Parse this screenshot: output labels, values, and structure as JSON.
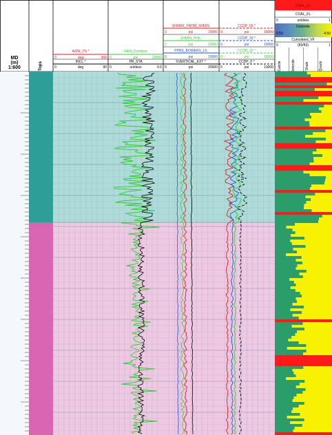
{
  "depth_track": {
    "title_line1": "MD",
    "title_line2": "(m)",
    "scale": "1:600"
  },
  "tops_track": {
    "title": "Tops",
    "zones": [
      {
        "color": "#2e9e98",
        "fill": "#aedcd9",
        "depth_from": 0,
        "depth_to": 0.415
      },
      {
        "color": "#d966b3",
        "fill": "#efc8e3",
        "depth_from": 0.415,
        "depth_to": 1.0
      }
    ]
  },
  "incl_track": {
    "curves": [
      {
        "name": "AZIM_TN *",
        "min": "0",
        "unit": "deg",
        "max": "360",
        "color": "#e8161b"
      },
      {
        "name": "INCL *",
        "min": "0",
        "unit": "deg",
        "max": "90",
        "color": "#000000"
      }
    ]
  },
  "pr_track": {
    "curves": [
      {
        "name": "GEO_Combine",
        "min": "0",
        "unit": "psi",
        "max": "20000",
        "color": "#32cd32"
      },
      {
        "name": "PR_STA",
        "min": "0",
        "unit": "unitless",
        "max": "0.5",
        "color": "#000000"
      }
    ]
  },
  "stress_track": {
    "curves": [
      {
        "name": "SHMAX_FROM_SHMIN",
        "min": "0",
        "unit": "psi",
        "max": "20000",
        "color": "#e8161b"
      },
      {
        "name": "SHMIN_PHIL",
        "min": "0",
        "unit": "psi",
        "max": "20000",
        "color": "#32cd32"
      },
      {
        "name": "PPRS_BOWERS_LS",
        "min": "0",
        "unit": "psi",
        "max": "20000",
        "color": "#1f4fd6"
      },
      {
        "name": "SVERTICAL_EXT *",
        "min": "0",
        "unit": "psi",
        "max": "20000",
        "color": "#000000"
      }
    ]
  },
  "ccdp_track": {
    "curves": [
      {
        "name": "CCDP_55 *",
        "min": "0",
        "unit": "psi",
        "max": "10000",
        "color": "#e8161b"
      },
      {
        "name": "CCDP_25 *",
        "min": "0",
        "unit": "psi",
        "max": "10000",
        "color": "#1f4fd6"
      },
      {
        "name": "CCDP_15 *",
        "min": "0",
        "unit": "psi",
        "max": "10000",
        "color": "#32cd32"
      },
      {
        "name": "CCDP_0 *",
        "min": "0",
        "unit": "psi",
        "max": "10000",
        "color": "#000000"
      }
    ]
  },
  "litho_track": {
    "coal_fl_label": "COAL_FL",
    "coal_fl_color": "#ff1a1a",
    "coal_fl2_label": "COAL_FL",
    "unitless_min": "0",
    "unitless_unit": "unitless",
    "unitless_max": "1",
    "color_scale_label": "Dolomite",
    "color_scale_min": "0.50",
    "color_scale_max": "4.50",
    "cumulated_label": "Cumulated_VF",
    "cumulated_min": "0",
    "cumulated_unit": "(ft3/ft3)",
    "cumulated_max": "1",
    "mineral_columns": [
      "Calcite",
      "Dolomite",
      "Shale",
      "Quartz"
    ],
    "mineral_colors": {
      "calcite": "#3aa57a",
      "shale": "#2a9d6a",
      "quartz": "#f7f200",
      "coal": "#ff1a1a"
    }
  },
  "chart_data": {
    "type": "well_log",
    "depth_scale": "1:600",
    "zone_boundary_fraction": 0.415,
    "curves_note": "GEO_Combine, PR_STA, stress curves and CCDP curves plotted vs depth",
    "grid": true
  }
}
